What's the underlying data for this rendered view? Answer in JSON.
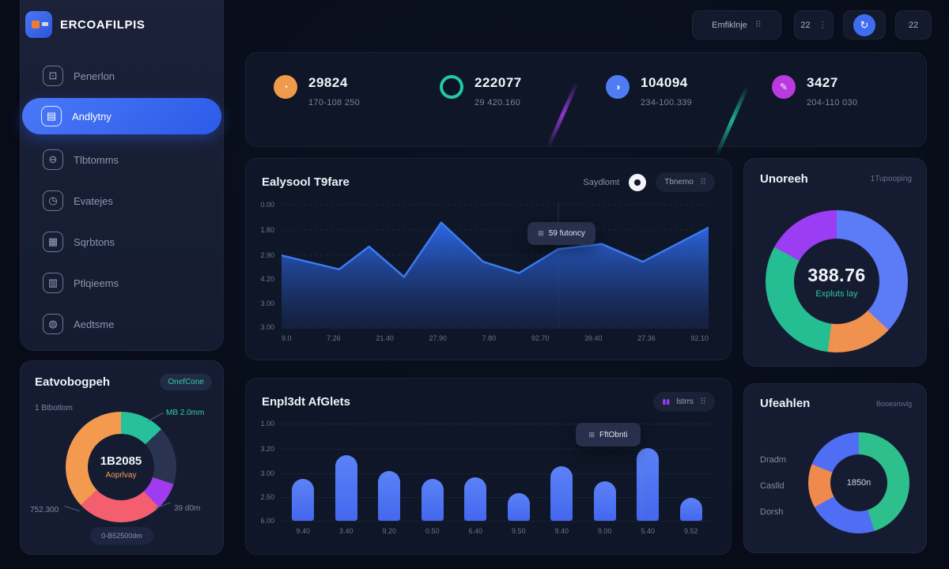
{
  "app": {
    "brand": "ERCOAFILPIS"
  },
  "topbar": {
    "search_label": "Emfiklnje",
    "count_a": "22",
    "count_b": "22",
    "avatar_glyph": "↻"
  },
  "sidebar": {
    "items": [
      {
        "label": "Penerlon",
        "icon": "folder-icon",
        "glyph": "⊡",
        "active": false
      },
      {
        "label": "Andlytny",
        "icon": "analytics-icon",
        "glyph": "▤",
        "active": true
      },
      {
        "label": "Tlbtomms",
        "icon": "minus-circle-icon",
        "glyph": "⊖",
        "active": false
      },
      {
        "label": "Evatejes",
        "icon": "clock-icon",
        "glyph": "◷",
        "active": false
      },
      {
        "label": "Sqrbtons",
        "icon": "calendar-icon",
        "glyph": "▦",
        "active": false
      },
      {
        "label": "Ptlqieems",
        "icon": "grid-icon",
        "glyph": "▥",
        "active": false
      },
      {
        "label": "Aedtsme",
        "icon": "user-icon",
        "glyph": "◍",
        "active": false
      }
    ]
  },
  "kpis": [
    {
      "value": "29824",
      "sub": "170-108 250",
      "color": "#f09a4c",
      "icon": "orange-sphere-icon",
      "glyph": "◔"
    },
    {
      "value": "222077",
      "sub": "29 420.160",
      "color": "#10203a",
      "ring": "#23c8a5",
      "icon": "teal-ring-icon",
      "glyph": ""
    },
    {
      "value": "104094",
      "sub": "234-100.339",
      "color": "#4f7bf5",
      "icon": "blue-sphere-icon",
      "glyph": "◑"
    },
    {
      "value": "3427",
      "sub": "204-110 030",
      "color": "#b93ae0",
      "icon": "magenta-pen-icon",
      "glyph": "✎"
    }
  ],
  "area_card": {
    "title": "Ealysool T9fare",
    "legend_label": "Saydlomt",
    "range_label": "Tbnemo",
    "tooltip": "59 futoncy",
    "tooltip_icon_glyph": "⊞",
    "chart_data": {
      "type": "area",
      "title": "Ealysool T9fare",
      "y_ticks": [
        "0.00",
        "1.80",
        "2.90",
        "4.20",
        "3.00",
        "3.00"
      ],
      "x_ticks": [
        "9.0",
        "7.26",
        "21.40",
        "27.90",
        "7.80",
        "92.70",
        "39.40",
        "27.36",
        "92.10"
      ],
      "points_norm": [
        [
          0,
          0.42
        ],
        [
          0.135,
          0.53
        ],
        [
          0.205,
          0.35
        ],
        [
          0.287,
          0.59
        ],
        [
          0.374,
          0.16
        ],
        [
          0.472,
          0.47
        ],
        [
          0.556,
          0.56
        ],
        [
          0.648,
          0.37
        ],
        [
          0.75,
          0.33
        ],
        [
          0.846,
          0.47
        ],
        [
          1,
          0.2
        ]
      ],
      "line_color": "#3b7bf5",
      "grid": true,
      "legend_position": "top-right"
    }
  },
  "bar_card": {
    "title": "Enpl3dt AfGlets",
    "filter_label": "lstrrs",
    "filter_icon_color": "#9b3df2",
    "tooltip": "FftObnti",
    "tooltip_icon_glyph": "⊞",
    "chart_data": {
      "type": "bar",
      "title": "Enpl3dt AfGlets",
      "y_ticks": [
        "1.00",
        "3.20",
        "3.00",
        "2.50",
        "6.00"
      ],
      "categories": [
        "9.40",
        "3.40",
        "9.20",
        "0.50",
        "6.40",
        "9.50",
        "9.40",
        "9.00",
        "5.40",
        "9.52"
      ],
      "values": [
        0.42,
        0.66,
        0.5,
        0.42,
        0.44,
        0.28,
        0.55,
        0.4,
        0.73,
        0.23
      ],
      "bar_color": "#4a72f4",
      "grid": true
    }
  },
  "donut_main": {
    "title": "Unoreeh",
    "subtitle": "1Tupooping",
    "center_value": "388.76",
    "center_label": "Expluts lay",
    "chart_data": {
      "type": "pie",
      "segments": [
        {
          "name": "blue",
          "color": "#5b7bf7",
          "value": 37
        },
        {
          "name": "orange",
          "color": "#f0914f",
          "value": 15
        },
        {
          "name": "teal",
          "color": "#25bd92",
          "value": 31
        },
        {
          "name": "purple",
          "color": "#9b3df2",
          "value": 17
        }
      ]
    }
  },
  "donut_small": {
    "title": "Ufeahlen",
    "subtitle": "Booesrovlg",
    "center_value": "1850n",
    "legend": [
      "Dradm",
      "Caslld",
      "Dorsh"
    ],
    "chart_data": {
      "type": "pie",
      "segments": [
        {
          "name": "green",
          "color": "#2ec08c",
          "value": 45
        },
        {
          "name": "blue",
          "color": "#4f6ef5",
          "value": 22
        },
        {
          "name": "orange",
          "color": "#ef8a4e",
          "value": 14
        },
        {
          "name": "blue-2",
          "color": "#4f6ef5",
          "value": 19
        }
      ]
    }
  },
  "breakdown_card": {
    "title": "Eatvobogpeh",
    "badge": "OnefCone",
    "center_value": "1B2085",
    "center_label": "Aoprlvay",
    "labels": {
      "top_left": "1 Btbotlom",
      "top_right": "MB 2.0mm",
      "bottom_left": "752.300",
      "bottom_right": "39 d0m",
      "footer": "0-B52500dm"
    },
    "chart_data": {
      "type": "pie",
      "segments": [
        {
          "name": "teal",
          "color": "#26c19b",
          "value": 13
        },
        {
          "name": "slate",
          "color": "#2a3350",
          "value": 17
        },
        {
          "name": "purple",
          "color": "#a13bf0",
          "value": 8
        },
        {
          "name": "coral",
          "color": "#f35f6e",
          "value": 25
        },
        {
          "name": "orange",
          "color": "#f49a4e",
          "value": 37
        }
      ]
    }
  }
}
